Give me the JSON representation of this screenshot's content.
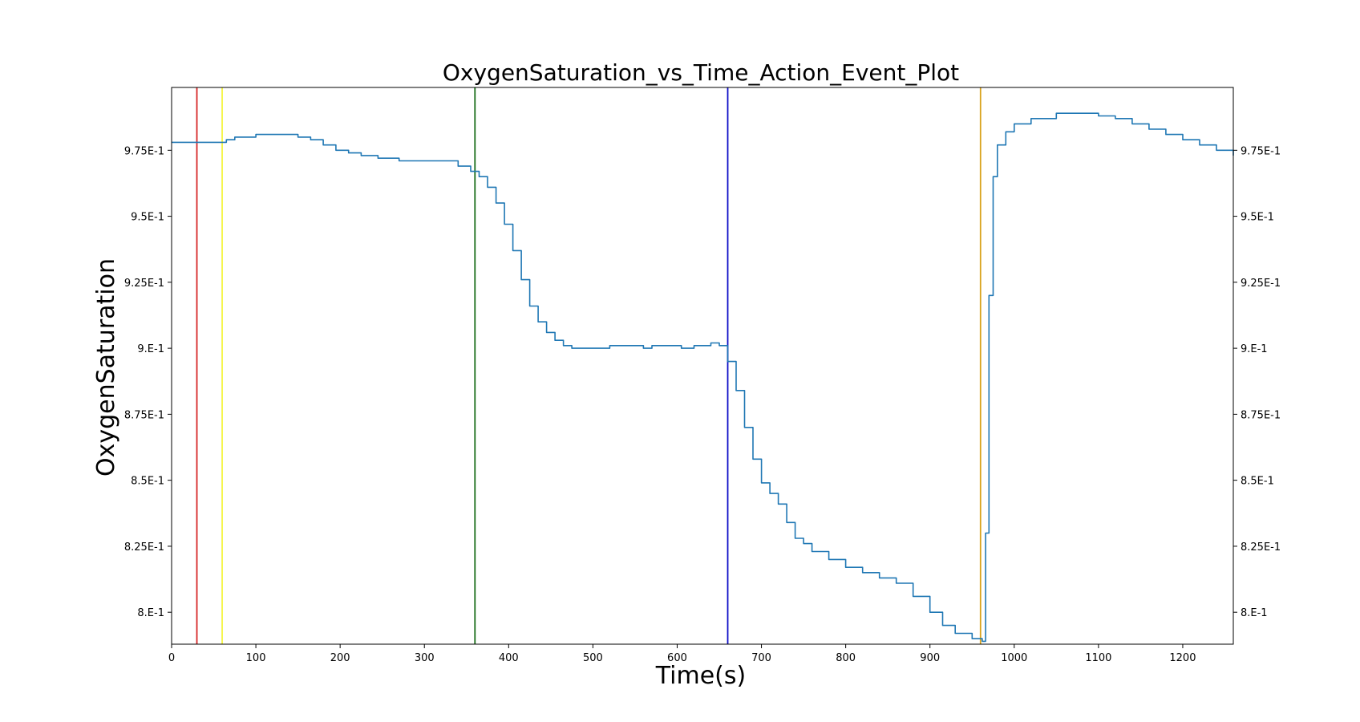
{
  "chart_data": {
    "type": "line",
    "title": "OxygenSaturation_vs_Time_Action_Event_Plot",
    "xlabel": "Time(s)",
    "ylabel": "OxygenSaturation",
    "xlim": [
      0,
      1260
    ],
    "ylim": [
      0.7879,
      0.9988
    ],
    "x_ticks": [
      {
        "value": 0,
        "label": "0"
      },
      {
        "value": 100,
        "label": "100"
      },
      {
        "value": 200,
        "label": "200"
      },
      {
        "value": 300,
        "label": "300"
      },
      {
        "value": 400,
        "label": "400"
      },
      {
        "value": 500,
        "label": "500"
      },
      {
        "value": 600,
        "label": "600"
      },
      {
        "value": 700,
        "label": "700"
      },
      {
        "value": 800,
        "label": "800"
      },
      {
        "value": 900,
        "label": "900"
      },
      {
        "value": 1000,
        "label": "1000"
      },
      {
        "value": 1100,
        "label": "1100"
      },
      {
        "value": 1200,
        "label": "1200"
      }
    ],
    "y_ticks": [
      {
        "value": 0.8,
        "label": "8.E-1"
      },
      {
        "value": 0.825,
        "label": "8.25E-1"
      },
      {
        "value": 0.85,
        "label": "8.5E-1"
      },
      {
        "value": 0.875,
        "label": "8.75E-1"
      },
      {
        "value": 0.9,
        "label": "9.E-1"
      },
      {
        "value": 0.925,
        "label": "9.25E-1"
      },
      {
        "value": 0.95,
        "label": "9.5E-1"
      },
      {
        "value": 0.975,
        "label": "9.75E-1"
      }
    ],
    "grid": false,
    "series": [
      {
        "color": "#1f77b4",
        "x": [
          0,
          30,
          60,
          65,
          75,
          100,
          130,
          150,
          165,
          180,
          195,
          210,
          225,
          245,
          270,
          295,
          320,
          340,
          355,
          365,
          375,
          385,
          395,
          405,
          415,
          425,
          435,
          445,
          455,
          465,
          475,
          485,
          500,
          520,
          550,
          560,
          570,
          590,
          605,
          620,
          640,
          650,
          660,
          670,
          680,
          690,
          700,
          710,
          720,
          730,
          740,
          750,
          760,
          780,
          800,
          820,
          840,
          860,
          880,
          900,
          915,
          930,
          950,
          962,
          966,
          970,
          975,
          980,
          990,
          1000,
          1020,
          1050,
          1080,
          1100,
          1120,
          1140,
          1160,
          1180,
          1200,
          1220,
          1240,
          1260
        ],
        "y": [
          0.978,
          0.978,
          0.978,
          0.979,
          0.98,
          0.981,
          0.981,
          0.98,
          0.979,
          0.977,
          0.975,
          0.974,
          0.973,
          0.972,
          0.971,
          0.971,
          0.971,
          0.969,
          0.967,
          0.965,
          0.961,
          0.955,
          0.947,
          0.937,
          0.926,
          0.916,
          0.91,
          0.906,
          0.903,
          0.901,
          0.9,
          0.9,
          0.9,
          0.901,
          0.901,
          0.9,
          0.901,
          0.901,
          0.9,
          0.901,
          0.902,
          0.901,
          0.895,
          0.884,
          0.87,
          0.858,
          0.849,
          0.845,
          0.841,
          0.834,
          0.828,
          0.826,
          0.823,
          0.82,
          0.817,
          0.815,
          0.813,
          0.811,
          0.806,
          0.8,
          0.795,
          0.792,
          0.79,
          0.789,
          0.83,
          0.92,
          0.965,
          0.977,
          0.982,
          0.985,
          0.987,
          0.989,
          0.989,
          0.988,
          0.987,
          0.985,
          0.983,
          0.981,
          0.979,
          0.977,
          0.975,
          0.973
        ]
      }
    ],
    "events": [
      {
        "x": 30,
        "color": "#d62728"
      },
      {
        "x": 60,
        "color": "#f5f542"
      },
      {
        "x": 360,
        "color": "#1a6e1a"
      },
      {
        "x": 660,
        "color": "#1010c8"
      },
      {
        "x": 960,
        "color": "#d9a21b"
      }
    ]
  }
}
